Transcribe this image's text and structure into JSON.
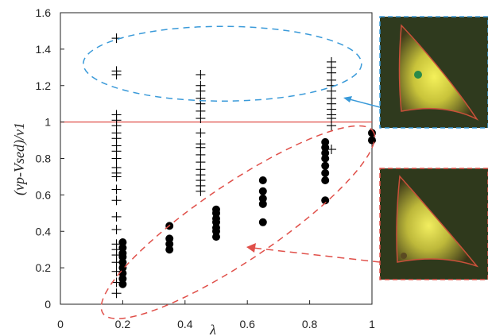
{
  "chart_data": {
    "type": "scatter",
    "xlabel": "λ",
    "ylabel": "(vp-Vsed)/v1",
    "xlim": [
      0,
      1
    ],
    "ylim": [
      0,
      1.6
    ],
    "x_ticks": [
      "0",
      "0.2",
      "0.4",
      "0.6",
      "0.8",
      "1"
    ],
    "y_ticks": [
      "0",
      "0.2",
      "0.4",
      "0.6",
      "0.8",
      "1",
      "1.2",
      "1.4",
      "1.6"
    ],
    "reference_line": {
      "y": 1,
      "color": "#e0504a"
    },
    "series": [
      {
        "marker": "plus",
        "color": "#000000",
        "points": [
          [
            0.18,
            1.46
          ],
          [
            0.18,
            1.28
          ],
          [
            0.18,
            1.26
          ],
          [
            0.18,
            1.04
          ],
          [
            0.18,
            1.01
          ],
          [
            0.18,
            0.98
          ],
          [
            0.18,
            0.94
          ],
          [
            0.18,
            0.91
          ],
          [
            0.18,
            0.87
          ],
          [
            0.18,
            0.84
          ],
          [
            0.18,
            0.8
          ],
          [
            0.18,
            0.75
          ],
          [
            0.18,
            0.72
          ],
          [
            0.18,
            0.7
          ],
          [
            0.18,
            0.63
          ],
          [
            0.18,
            0.57
          ],
          [
            0.18,
            0.48
          ],
          [
            0.18,
            0.41
          ],
          [
            0.18,
            0.33
          ],
          [
            0.18,
            0.3
          ],
          [
            0.18,
            0.27
          ],
          [
            0.18,
            0.23
          ],
          [
            0.18,
            0.18
          ],
          [
            0.18,
            0.12
          ],
          [
            0.18,
            0.06
          ],
          [
            0.45,
            1.26
          ],
          [
            0.45,
            1.2
          ],
          [
            0.45,
            1.17
          ],
          [
            0.45,
            1.13
          ],
          [
            0.45,
            1.1
          ],
          [
            0.45,
            1.06
          ],
          [
            0.45,
            1.02
          ],
          [
            0.45,
            0.94
          ],
          [
            0.45,
            0.88
          ],
          [
            0.45,
            0.86
          ],
          [
            0.45,
            0.82
          ],
          [
            0.45,
            0.78
          ],
          [
            0.45,
            0.74
          ],
          [
            0.45,
            0.71
          ],
          [
            0.45,
            0.68
          ],
          [
            0.45,
            0.65
          ],
          [
            0.45,
            0.62
          ],
          [
            0.87,
            1.33
          ],
          [
            0.87,
            1.3
          ],
          [
            0.87,
            1.27
          ],
          [
            0.87,
            1.23
          ],
          [
            0.87,
            1.2
          ],
          [
            0.87,
            1.17
          ],
          [
            0.87,
            1.13
          ],
          [
            0.87,
            1.1
          ],
          [
            0.87,
            1.07
          ],
          [
            0.87,
            1.04
          ],
          [
            0.87,
            1.02
          ],
          [
            0.87,
            0.98
          ],
          [
            0.87,
            0.85
          ]
        ]
      },
      {
        "marker": "dot",
        "color": "#000000",
        "points": [
          [
            0.2,
            0.34
          ],
          [
            0.2,
            0.31
          ],
          [
            0.2,
            0.28
          ],
          [
            0.2,
            0.26
          ],
          [
            0.2,
            0.23
          ],
          [
            0.2,
            0.2
          ],
          [
            0.2,
            0.17
          ],
          [
            0.2,
            0.14
          ],
          [
            0.2,
            0.11
          ],
          [
            0.35,
            0.43
          ],
          [
            0.35,
            0.36
          ],
          [
            0.35,
            0.33
          ],
          [
            0.35,
            0.3
          ],
          [
            0.5,
            0.52
          ],
          [
            0.5,
            0.5
          ],
          [
            0.5,
            0.47
          ],
          [
            0.5,
            0.45
          ],
          [
            0.5,
            0.42
          ],
          [
            0.5,
            0.4
          ],
          [
            0.5,
            0.37
          ],
          [
            0.65,
            0.68
          ],
          [
            0.65,
            0.62
          ],
          [
            0.65,
            0.58
          ],
          [
            0.65,
            0.55
          ],
          [
            0.65,
            0.45
          ],
          [
            0.85,
            0.89
          ],
          [
            0.85,
            0.86
          ],
          [
            0.85,
            0.83
          ],
          [
            0.85,
            0.8
          ],
          [
            0.85,
            0.76
          ],
          [
            0.85,
            0.72
          ],
          [
            0.85,
            0.68
          ],
          [
            0.85,
            0.57
          ],
          [
            1.0,
            0.94
          ],
          [
            1.0,
            0.9
          ]
        ]
      }
    ],
    "annotations": [
      {
        "shape": "dashed-ellipse",
        "color": "#3a9ad9",
        "encloses": "crosses above y=1"
      },
      {
        "shape": "dashed-ellipse",
        "color": "#e0504a",
        "encloses": "dots below y=1"
      }
    ],
    "inset_images": [
      {
        "name": "upper-inset",
        "border_color": "#3a9ad9"
      },
      {
        "name": "lower-inset",
        "border_color": "#e0504a"
      }
    ]
  }
}
